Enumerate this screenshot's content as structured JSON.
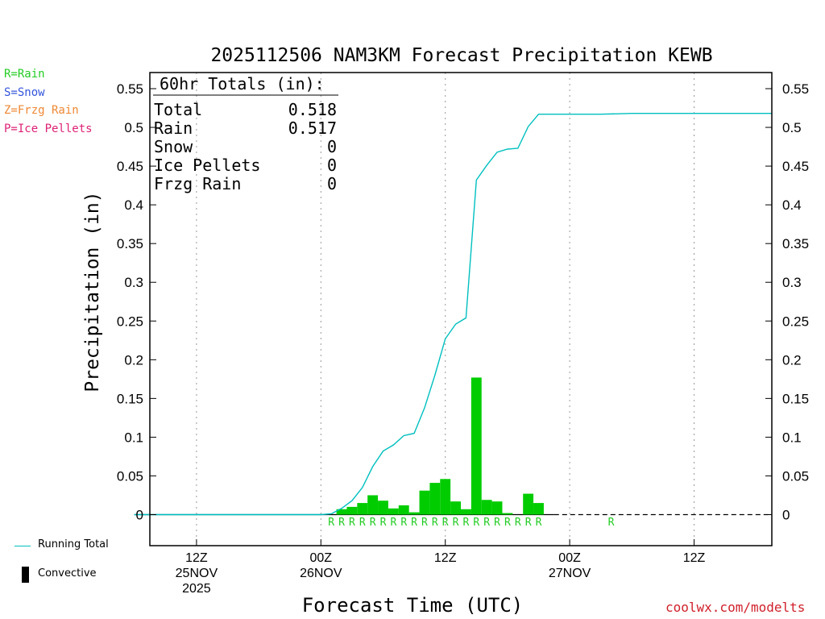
{
  "legend": {
    "items": [
      {
        "label": "R=Rain",
        "color": "#22cc22"
      },
      {
        "label": "S=Snow",
        "color": "#3355dd"
      },
      {
        "label": "Z=Frzg Rain",
        "color": "#ee8833"
      },
      {
        "label": "P=Ice Pellets",
        "color": "#dd2277"
      }
    ],
    "running_total_label": "Running Total",
    "convective_label": "Convective"
  },
  "credit": "coolwx.com/modelts",
  "chart_data": {
    "type": "bar",
    "title": "2025112506 NAM3KM Forecast Precipitation KEWB",
    "xlabel": "Forecast Time (UTC)",
    "ylabel": "Precipitation (in)",
    "ylim": [
      -0.04,
      0.57
    ],
    "yticks": [
      0,
      0.05,
      0.1,
      0.15,
      0.2,
      0.25,
      0.3,
      0.35,
      0.4,
      0.45,
      0.5,
      0.55
    ],
    "ytick_labels": [
      "0",
      "0.05",
      "0.1",
      "0.15",
      "0.2",
      "0.25",
      "0.3",
      "0.35",
      "0.4",
      "0.45",
      "0.5",
      "0.55"
    ],
    "x_unit": "forecast hour",
    "xlim": [
      0,
      60
    ],
    "xticks": [
      {
        "hour": 6,
        "lines": [
          "12Z",
          "25NOV",
          "2025"
        ]
      },
      {
        "hour": 18,
        "lines": [
          "00Z",
          "26NOV"
        ]
      },
      {
        "hour": 30,
        "lines": [
          "12Z"
        ]
      },
      {
        "hour": 42,
        "lines": [
          "00Z",
          "27NOV"
        ]
      },
      {
        "hour": 54,
        "lines": [
          "12Z"
        ]
      }
    ],
    "totals_box": {
      "heading": "60hr Totals (in):",
      "rows": [
        {
          "label": "Total",
          "value": "0.518"
        },
        {
          "label": "Rain",
          "value": "0.517"
        },
        {
          "label": "Snow",
          "value": "0"
        },
        {
          "label": "Ice Pellets",
          "value": "0"
        },
        {
          "label": "Frzg Rain",
          "value": "0"
        }
      ]
    },
    "series": [
      {
        "name": "Hourly Precipitation",
        "type": "bar",
        "color": "#00cc00",
        "hours": [
          20,
          21,
          22,
          23,
          24,
          25,
          26,
          27,
          28,
          29,
          30,
          31,
          32,
          33,
          34,
          35,
          36,
          37,
          38,
          39,
          40
        ],
        "values": [
          0.007,
          0.01,
          0.015,
          0.025,
          0.018,
          0.008,
          0.012,
          0.003,
          0.031,
          0.041,
          0.046,
          0.017,
          0.007,
          0.177,
          0.019,
          0.017,
          0.002,
          0.0,
          0.027,
          0.015,
          0.0
        ]
      },
      {
        "name": "Running Total",
        "type": "line",
        "color": "#00bfbf",
        "hours": [
          0,
          18,
          19,
          20,
          21,
          22,
          23,
          24,
          25,
          26,
          27,
          28,
          29,
          30,
          31,
          32,
          33,
          34,
          35,
          36,
          37,
          38,
          39,
          40,
          45,
          48,
          60
        ],
        "values": [
          0,
          0,
          0.001,
          0.008,
          0.018,
          0.035,
          0.062,
          0.082,
          0.09,
          0.102,
          0.105,
          0.138,
          0.18,
          0.227,
          0.246,
          0.254,
          0.432,
          0.451,
          0.468,
          0.472,
          0.473,
          0.501,
          0.517,
          0.517,
          0.517,
          0.518,
          0.518
        ]
      }
    ],
    "type_markers": {
      "label": "R",
      "color": "#22cc22",
      "hours": [
        19,
        20,
        21,
        22,
        23,
        24,
        25,
        26,
        27,
        28,
        29,
        30,
        31,
        32,
        33,
        34,
        35,
        36,
        37,
        38,
        39,
        46
      ]
    }
  }
}
